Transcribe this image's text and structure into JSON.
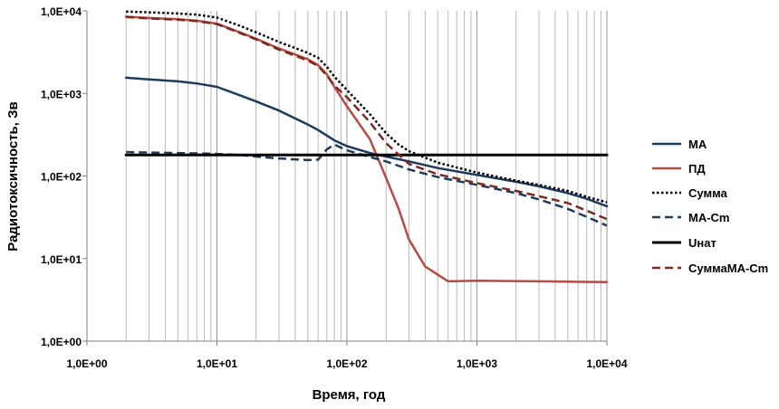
{
  "chart_data": {
    "type": "line",
    "x_scale": "log",
    "y_scale": "log",
    "xlim": [
      1,
      10000
    ],
    "ylim": [
      1,
      10000
    ],
    "xlabel": "Время, год",
    "ylabel": "Радиотоксичность, Зв",
    "grid": {
      "vertical_minor": true,
      "horizontal": false
    },
    "legend_position": "right",
    "x_ticks": [
      {
        "value": 1,
        "label": "1,0E+00"
      },
      {
        "value": 10,
        "label": "1,0E+01"
      },
      {
        "value": 100,
        "label": "1,0E+02"
      },
      {
        "value": 1000,
        "label": "1,0E+03"
      },
      {
        "value": 10000,
        "label": "1,0E+04"
      }
    ],
    "y_ticks": [
      {
        "value": 1,
        "label": "1,0E+00"
      },
      {
        "value": 10,
        "label": "1,0E+01"
      },
      {
        "value": 100,
        "label": "1,0E+02"
      },
      {
        "value": 1000,
        "label": "1,0E+03"
      },
      {
        "value": 10000,
        "label": "1,0E+04"
      }
    ],
    "series": [
      {
        "name": "МА",
        "color": "#1f3b5c",
        "dash": "solid",
        "width": 2.5,
        "points": [
          [
            2,
            1550
          ],
          [
            3,
            1480
          ],
          [
            5,
            1400
          ],
          [
            7,
            1320
          ],
          [
            10,
            1200
          ],
          [
            15,
            950
          ],
          [
            20,
            800
          ],
          [
            30,
            620
          ],
          [
            50,
            420
          ],
          [
            60,
            360
          ],
          [
            80,
            270
          ],
          [
            100,
            230
          ],
          [
            150,
            190
          ],
          [
            200,
            172
          ],
          [
            300,
            150
          ],
          [
            500,
            125
          ],
          [
            1000,
            103
          ],
          [
            2000,
            85
          ],
          [
            3000,
            75
          ],
          [
            5000,
            62
          ],
          [
            7000,
            53
          ],
          [
            10000,
            43
          ]
        ]
      },
      {
        "name": "ПД",
        "color": "#b84a44",
        "dash": "solid",
        "width": 2.5,
        "points": [
          [
            2,
            8500
          ],
          [
            3,
            8200
          ],
          [
            5,
            7900
          ],
          [
            7,
            7600
          ],
          [
            10,
            7000
          ],
          [
            15,
            5500
          ],
          [
            20,
            4600
          ],
          [
            30,
            3500
          ],
          [
            50,
            2600
          ],
          [
            60,
            2200
          ],
          [
            70,
            1700
          ],
          [
            80,
            1200
          ],
          [
            100,
            700
          ],
          [
            150,
            280
          ],
          [
            200,
            95
          ],
          [
            250,
            40
          ],
          [
            300,
            17
          ],
          [
            400,
            8
          ],
          [
            600,
            5.3
          ],
          [
            1000,
            5.4
          ],
          [
            3000,
            5.3
          ],
          [
            10000,
            5.2
          ]
        ]
      },
      {
        "name": "Сумма",
        "color": "#000000",
        "dash": "dotted",
        "width": 2.5,
        "points": [
          [
            2,
            9800
          ],
          [
            3,
            9600
          ],
          [
            5,
            9300
          ],
          [
            7,
            9000
          ],
          [
            10,
            8300
          ],
          [
            15,
            6600
          ],
          [
            20,
            5500
          ],
          [
            30,
            4200
          ],
          [
            50,
            3100
          ],
          [
            60,
            2700
          ],
          [
            70,
            2100
          ],
          [
            80,
            1600
          ],
          [
            100,
            1100
          ],
          [
            150,
            560
          ],
          [
            200,
            330
          ],
          [
            250,
            240
          ],
          [
            300,
            200
          ],
          [
            500,
            145
          ],
          [
            1000,
            110
          ],
          [
            2000,
            88
          ],
          [
            3000,
            78
          ],
          [
            5000,
            66
          ],
          [
            7000,
            56
          ],
          [
            10000,
            48
          ]
        ]
      },
      {
        "name": "МА-Cm",
        "color": "#1f3b5c",
        "dash": "dashed",
        "width": 2.5,
        "points": [
          [
            2,
            195
          ],
          [
            3,
            192
          ],
          [
            5,
            190
          ],
          [
            7,
            188
          ],
          [
            10,
            185
          ],
          [
            15,
            180
          ],
          [
            20,
            172
          ],
          [
            30,
            163
          ],
          [
            50,
            156
          ],
          [
            60,
            158
          ],
          [
            70,
            210
          ],
          [
            80,
            240
          ],
          [
            100,
            205
          ],
          [
            150,
            170
          ],
          [
            200,
            150
          ],
          [
            300,
            120
          ],
          [
            500,
            97
          ],
          [
            1000,
            78
          ],
          [
            2000,
            62
          ],
          [
            3000,
            52
          ],
          [
            5000,
            40
          ],
          [
            7000,
            32
          ],
          [
            10000,
            25
          ]
        ]
      },
      {
        "name": "Uнат",
        "color": "#000000",
        "dash": "solid",
        "width": 3,
        "points": [
          [
            2,
            180
          ],
          [
            10000,
            180
          ]
        ]
      },
      {
        "name": "СуммаМА-Cm",
        "color": "#7a2a22",
        "dash": "dashed",
        "width": 2.5,
        "points": [
          [
            2,
            8400
          ],
          [
            3,
            8100
          ],
          [
            5,
            7800
          ],
          [
            7,
            7500
          ],
          [
            10,
            6900
          ],
          [
            15,
            5400
          ],
          [
            20,
            4500
          ],
          [
            30,
            3400
          ],
          [
            50,
            2500
          ],
          [
            60,
            2150
          ],
          [
            70,
            1650
          ],
          [
            80,
            1250
          ],
          [
            100,
            900
          ],
          [
            150,
            450
          ],
          [
            200,
            250
          ],
          [
            300,
            140
          ],
          [
            500,
            105
          ],
          [
            1000,
            82
          ],
          [
            2000,
            66
          ],
          [
            3000,
            57
          ],
          [
            5000,
            47
          ],
          [
            7000,
            38
          ],
          [
            10000,
            30
          ]
        ]
      }
    ]
  }
}
